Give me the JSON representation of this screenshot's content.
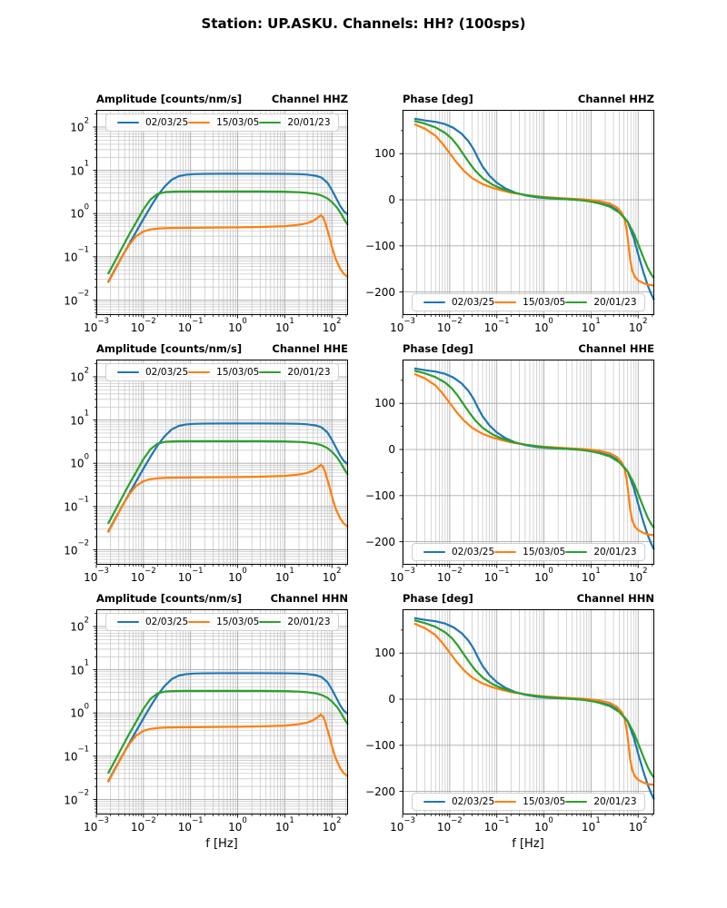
{
  "figure": {
    "title": "Station: UP.ASKU. Channels: HH? (100sps)",
    "xlabel": "f [Hz]"
  },
  "legend": {
    "entries": [
      {
        "label": "02/03/25",
        "color": "#1f77b4"
      },
      {
        "label": "15/03/05",
        "color": "#ff7f0e"
      },
      {
        "label": "20/01/23",
        "color": "#2ca02c"
      }
    ]
  },
  "charts": [
    {
      "kind": "amplitude",
      "channel": "HHZ",
      "title_left": "Amplitude [counts/nm/s]",
      "title_right": "Channel HHZ"
    },
    {
      "kind": "phase",
      "channel": "HHZ",
      "title_left": "Phase [deg]",
      "title_right": "Channel HHZ"
    },
    {
      "kind": "amplitude",
      "channel": "HHE",
      "title_left": "Amplitude [counts/nm/s]",
      "title_right": "Channel HHE"
    },
    {
      "kind": "phase",
      "channel": "HHE",
      "title_left": "Phase [deg]",
      "title_right": "Channel HHE"
    },
    {
      "kind": "amplitude",
      "channel": "HHN",
      "title_left": "Amplitude [counts/nm/s]",
      "title_right": "Channel HHN"
    },
    {
      "kind": "phase",
      "channel": "HHN",
      "title_left": "Phase [deg]",
      "title_right": "Channel HHN"
    }
  ],
  "chart_data": {
    "type": "line",
    "grid": "major+minor",
    "channels": [
      "HHZ",
      "HHE",
      "HHN"
    ],
    "x": {
      "scale": "log",
      "lim": [
        0.001,
        220
      ],
      "tick_exponents": [
        -3,
        -2,
        -1,
        0,
        1,
        2
      ],
      "label": "f [Hz]"
    },
    "amplitude_axis": {
      "scale": "log",
      "lim": [
        0.0045,
        250
      ],
      "tick_exponents": [
        2,
        1,
        0,
        -1,
        -2
      ],
      "title": "Amplitude [counts/nm/s]",
      "legend_position": "top"
    },
    "phase_axis": {
      "scale": "linear",
      "lim": [
        -250,
        195
      ],
      "ticks": [
        100,
        0,
        -100,
        -200
      ],
      "minor_step": 50,
      "title": "Phase [deg]",
      "legend_position": "bottom"
    },
    "series": {
      "amplitude": [
        {
          "name": "02/03/25",
          "color": "#1f77b4",
          "points": [
            [
              0.00177,
              0.026
            ],
            [
              0.0025,
              0.052
            ],
            [
              0.0035,
              0.1
            ],
            [
              0.005,
              0.2
            ],
            [
              0.007,
              0.38
            ],
            [
              0.01,
              0.75
            ],
            [
              0.014,
              1.4
            ],
            [
              0.02,
              2.6
            ],
            [
              0.028,
              4.2
            ],
            [
              0.04,
              6.1
            ],
            [
              0.056,
              7.3
            ],
            [
              0.08,
              7.9
            ],
            [
              0.12,
              8.15
            ],
            [
              0.2,
              8.25
            ],
            [
              0.5,
              8.3
            ],
            [
              1,
              8.3
            ],
            [
              3,
              8.3
            ],
            [
              10,
              8.25
            ],
            [
              20,
              8.15
            ],
            [
              30,
              7.95
            ],
            [
              45,
              7.5
            ],
            [
              60,
              6.8
            ],
            [
              80,
              5.2
            ],
            [
              100,
              3.5
            ],
            [
              120,
              2.4
            ],
            [
              150,
              1.5
            ],
            [
              180,
              1.12
            ],
            [
              218,
              0.95
            ]
          ]
        },
        {
          "name": "15/03/05",
          "color": "#ff7f0e",
          "points": [
            [
              0.00177,
              0.025
            ],
            [
              0.0025,
              0.05
            ],
            [
              0.0035,
              0.1
            ],
            [
              0.005,
              0.19
            ],
            [
              0.007,
              0.3
            ],
            [
              0.01,
              0.385
            ],
            [
              0.014,
              0.43
            ],
            [
              0.02,
              0.45
            ],
            [
              0.03,
              0.46
            ],
            [
              0.05,
              0.465
            ],
            [
              0.1,
              0.47
            ],
            [
              0.3,
              0.475
            ],
            [
              1,
              0.48
            ],
            [
              3,
              0.49
            ],
            [
              10,
              0.51
            ],
            [
              20,
              0.55
            ],
            [
              30,
              0.6
            ],
            [
              40,
              0.68
            ],
            [
              50,
              0.8
            ],
            [
              58,
              0.92
            ],
            [
              65,
              0.82
            ],
            [
              72,
              0.63
            ],
            [
              80,
              0.42
            ],
            [
              90,
              0.27
            ],
            [
              100,
              0.17
            ],
            [
              120,
              0.09
            ],
            [
              150,
              0.053
            ],
            [
              180,
              0.04
            ],
            [
              218,
              0.034
            ]
          ]
        },
        {
          "name": "20/01/23",
          "color": "#2ca02c",
          "points": [
            [
              0.00177,
              0.04
            ],
            [
              0.0025,
              0.08
            ],
            [
              0.0035,
              0.16
            ],
            [
              0.005,
              0.33
            ],
            [
              0.007,
              0.63
            ],
            [
              0.01,
              1.25
            ],
            [
              0.014,
              2.1
            ],
            [
              0.02,
              2.85
            ],
            [
              0.03,
              3.15
            ],
            [
              0.05,
              3.22
            ],
            [
              0.1,
              3.25
            ],
            [
              0.3,
              3.25
            ],
            [
              1,
              3.25
            ],
            [
              3,
              3.25
            ],
            [
              10,
              3.2
            ],
            [
              20,
              3.12
            ],
            [
              30,
              3.02
            ],
            [
              45,
              2.85
            ],
            [
              60,
              2.62
            ],
            [
              80,
              2.25
            ],
            [
              100,
              1.85
            ],
            [
              130,
              1.35
            ],
            [
              160,
              0.95
            ],
            [
              190,
              0.68
            ],
            [
              218,
              0.55
            ]
          ]
        }
      ],
      "phase": [
        {
          "name": "02/03/25",
          "color": "#1f77b4",
          "points": [
            [
              0.00177,
              176
            ],
            [
              0.003,
              172
            ],
            [
              0.005,
              169
            ],
            [
              0.008,
              164
            ],
            [
              0.012,
              156
            ],
            [
              0.018,
              143
            ],
            [
              0.025,
              127
            ],
            [
              0.032,
              110
            ],
            [
              0.04,
              90
            ],
            [
              0.05,
              72
            ],
            [
              0.07,
              52
            ],
            [
              0.1,
              37
            ],
            [
              0.15,
              25
            ],
            [
              0.25,
              15
            ],
            [
              0.4,
              9.5
            ],
            [
              0.7,
              5.5
            ],
            [
              1,
              4
            ],
            [
              2,
              2
            ],
            [
              4,
              0.5
            ],
            [
              7,
              -1.5
            ],
            [
              10,
              -3.5
            ],
            [
              15,
              -7
            ],
            [
              25,
              -13
            ],
            [
              40,
              -25
            ],
            [
              60,
              -48
            ],
            [
              80,
              -82
            ],
            [
              100,
              -118
            ],
            [
              130,
              -158
            ],
            [
              160,
              -186
            ],
            [
              190,
              -205
            ],
            [
              218,
              -217
            ]
          ]
        },
        {
          "name": "15/03/05",
          "color": "#ff7f0e",
          "points": [
            [
              0.00177,
              164
            ],
            [
              0.003,
              154
            ],
            [
              0.005,
              139
            ],
            [
              0.007,
              122
            ],
            [
              0.01,
              101
            ],
            [
              0.014,
              81
            ],
            [
              0.02,
              63
            ],
            [
              0.03,
              47
            ],
            [
              0.05,
              34
            ],
            [
              0.08,
              26
            ],
            [
              0.12,
              21
            ],
            [
              0.2,
              15.5
            ],
            [
              0.4,
              10.5
            ],
            [
              0.7,
              7.5
            ],
            [
              1,
              6
            ],
            [
              2,
              4
            ],
            [
              4,
              2.2
            ],
            [
              7,
              0.8
            ],
            [
              10,
              -0.5
            ],
            [
              15,
              -3
            ],
            [
              25,
              -8
            ],
            [
              35,
              -16
            ],
            [
              45,
              -28
            ],
            [
              52,
              -44
            ],
            [
              58,
              -70
            ],
            [
              63,
              -102
            ],
            [
              68,
              -131
            ],
            [
              75,
              -154
            ],
            [
              85,
              -167
            ],
            [
              100,
              -175
            ],
            [
              130,
              -181
            ],
            [
              160,
              -184
            ],
            [
              218,
              -186
            ]
          ]
        },
        {
          "name": "20/01/23",
          "color": "#2ca02c",
          "points": [
            [
              0.00177,
              171
            ],
            [
              0.003,
              165
            ],
            [
              0.005,
              157
            ],
            [
              0.008,
              145
            ],
            [
              0.011,
              133
            ],
            [
              0.015,
              116
            ],
            [
              0.02,
              97
            ],
            [
              0.027,
              78
            ],
            [
              0.035,
              63
            ],
            [
              0.05,
              47
            ],
            [
              0.08,
              33
            ],
            [
              0.12,
              25
            ],
            [
              0.2,
              17
            ],
            [
              0.4,
              10.5
            ],
            [
              0.7,
              7
            ],
            [
              1,
              5
            ],
            [
              2,
              2.5
            ],
            [
              4,
              0.5
            ],
            [
              7,
              -1.5
            ],
            [
              10,
              -4
            ],
            [
              15,
              -8
            ],
            [
              25,
              -15
            ],
            [
              40,
              -28
            ],
            [
              60,
              -48
            ],
            [
              80,
              -72
            ],
            [
              100,
              -96
            ],
            [
              130,
              -126
            ],
            [
              160,
              -148
            ],
            [
              190,
              -162
            ],
            [
              218,
              -170
            ]
          ]
        }
      ]
    }
  }
}
